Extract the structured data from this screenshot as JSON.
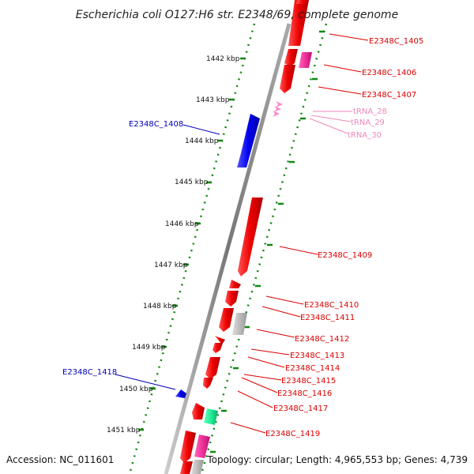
{
  "title": "Escherichia coli O127:H6 str. E2348/69, complete genome",
  "accession": "Accession: NC_011601",
  "topology": "Topology: circular; Length: 4,965,553 bp; Genes: 4,739",
  "ticks": [
    "1442 kbp",
    "1443 kbp",
    "1444 kbp",
    "1445 kbp",
    "1446 kbp",
    "1447 kbp",
    "1448 kbp",
    "1449 kbp",
    "1450 kbp",
    "1451 kbp"
  ],
  "labels": [
    {
      "text": "E2348C_1405",
      "color": "#dd0000"
    },
    {
      "text": "E2348C_1406",
      "color": "#dd0000"
    },
    {
      "text": "E2348C_1407",
      "color": "#dd0000"
    },
    {
      "text": "tRNA_28",
      "color": "#ee88bb"
    },
    {
      "text": "tRNA_29",
      "color": "#ee88bb"
    },
    {
      "text": "tRNA_30",
      "color": "#ee88bb"
    },
    {
      "text": "E2348C_1408",
      "color": "#0000bb"
    },
    {
      "text": "E2348C_1409",
      "color": "#dd0000"
    },
    {
      "text": "E2348C_1410",
      "color": "#dd0000"
    },
    {
      "text": "E2348C_1411",
      "color": "#dd0000"
    },
    {
      "text": "E2348C_1412",
      "color": "#dd0000"
    },
    {
      "text": "E2348C_1413",
      "color": "#dd0000"
    },
    {
      "text": "E2348C_1414",
      "color": "#dd0000"
    },
    {
      "text": "E2348C_1415",
      "color": "#dd0000"
    },
    {
      "text": "E2348C_1416",
      "color": "#dd0000"
    },
    {
      "text": "E2348C_1417",
      "color": "#dd0000"
    },
    {
      "text": "E2348C_1418",
      "color": "#0000bb"
    },
    {
      "text": "E2348C_1419",
      "color": "#dd0000"
    }
  ],
  "colors": {
    "backbone": "#888888",
    "cds_forward": "#ee0000",
    "cds_reverse": "#0000ee",
    "rrna": "#ee3399",
    "trna": "#ff88cc",
    "other": "#bbbbbb",
    "misc": "#22ee99",
    "tick_mark": "#118811"
  }
}
